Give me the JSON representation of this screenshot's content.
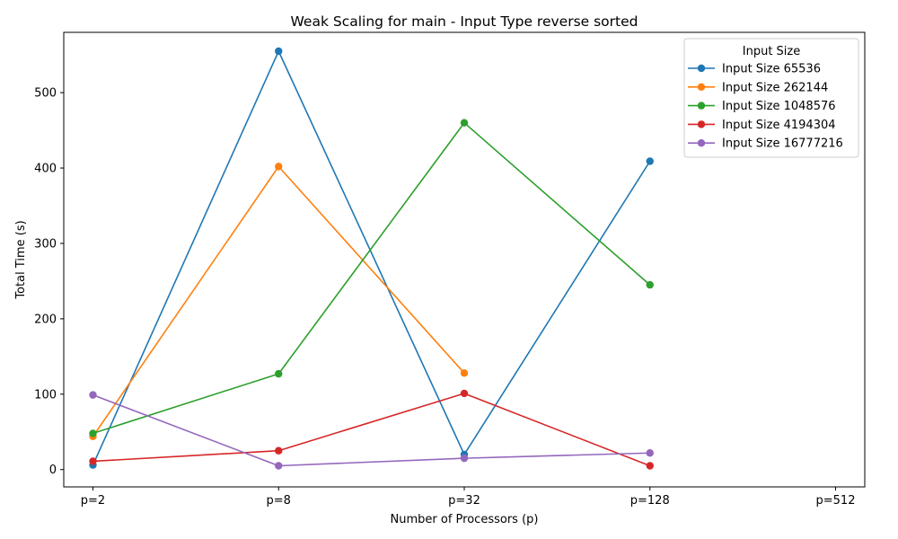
{
  "chart_data": {
    "type": "line",
    "title": "Weak Scaling for main - Input Type reverse sorted",
    "xlabel": "Number of Processors (p)",
    "ylabel": "Total Time (s)",
    "categories": [
      "p=2",
      "p=8",
      "p=32",
      "p=128",
      "p=512"
    ],
    "yticks": [
      0,
      100,
      200,
      300,
      400,
      500
    ],
    "ylim": [
      -23,
      580
    ],
    "grid": false,
    "legend": {
      "title": "Input Size",
      "placement": "top-right"
    },
    "series": [
      {
        "name": "Input Size 65536",
        "color": "#1f77b4",
        "values": [
          6,
          555,
          20,
          409,
          null
        ]
      },
      {
        "name": "Input Size 262144",
        "color": "#ff7f0e",
        "values": [
          44,
          402,
          128,
          null,
          null
        ]
      },
      {
        "name": "Input Size 1048576",
        "color": "#2ca02c",
        "values": [
          48,
          127,
          460,
          245,
          null
        ]
      },
      {
        "name": "Input Size 4194304",
        "color": "#d62728",
        "values": [
          11,
          25,
          101,
          5,
          null
        ]
      },
      {
        "name": "Input Size 16777216",
        "color": "#9467bd",
        "values": [
          99,
          5,
          15,
          22,
          null
        ]
      }
    ]
  }
}
